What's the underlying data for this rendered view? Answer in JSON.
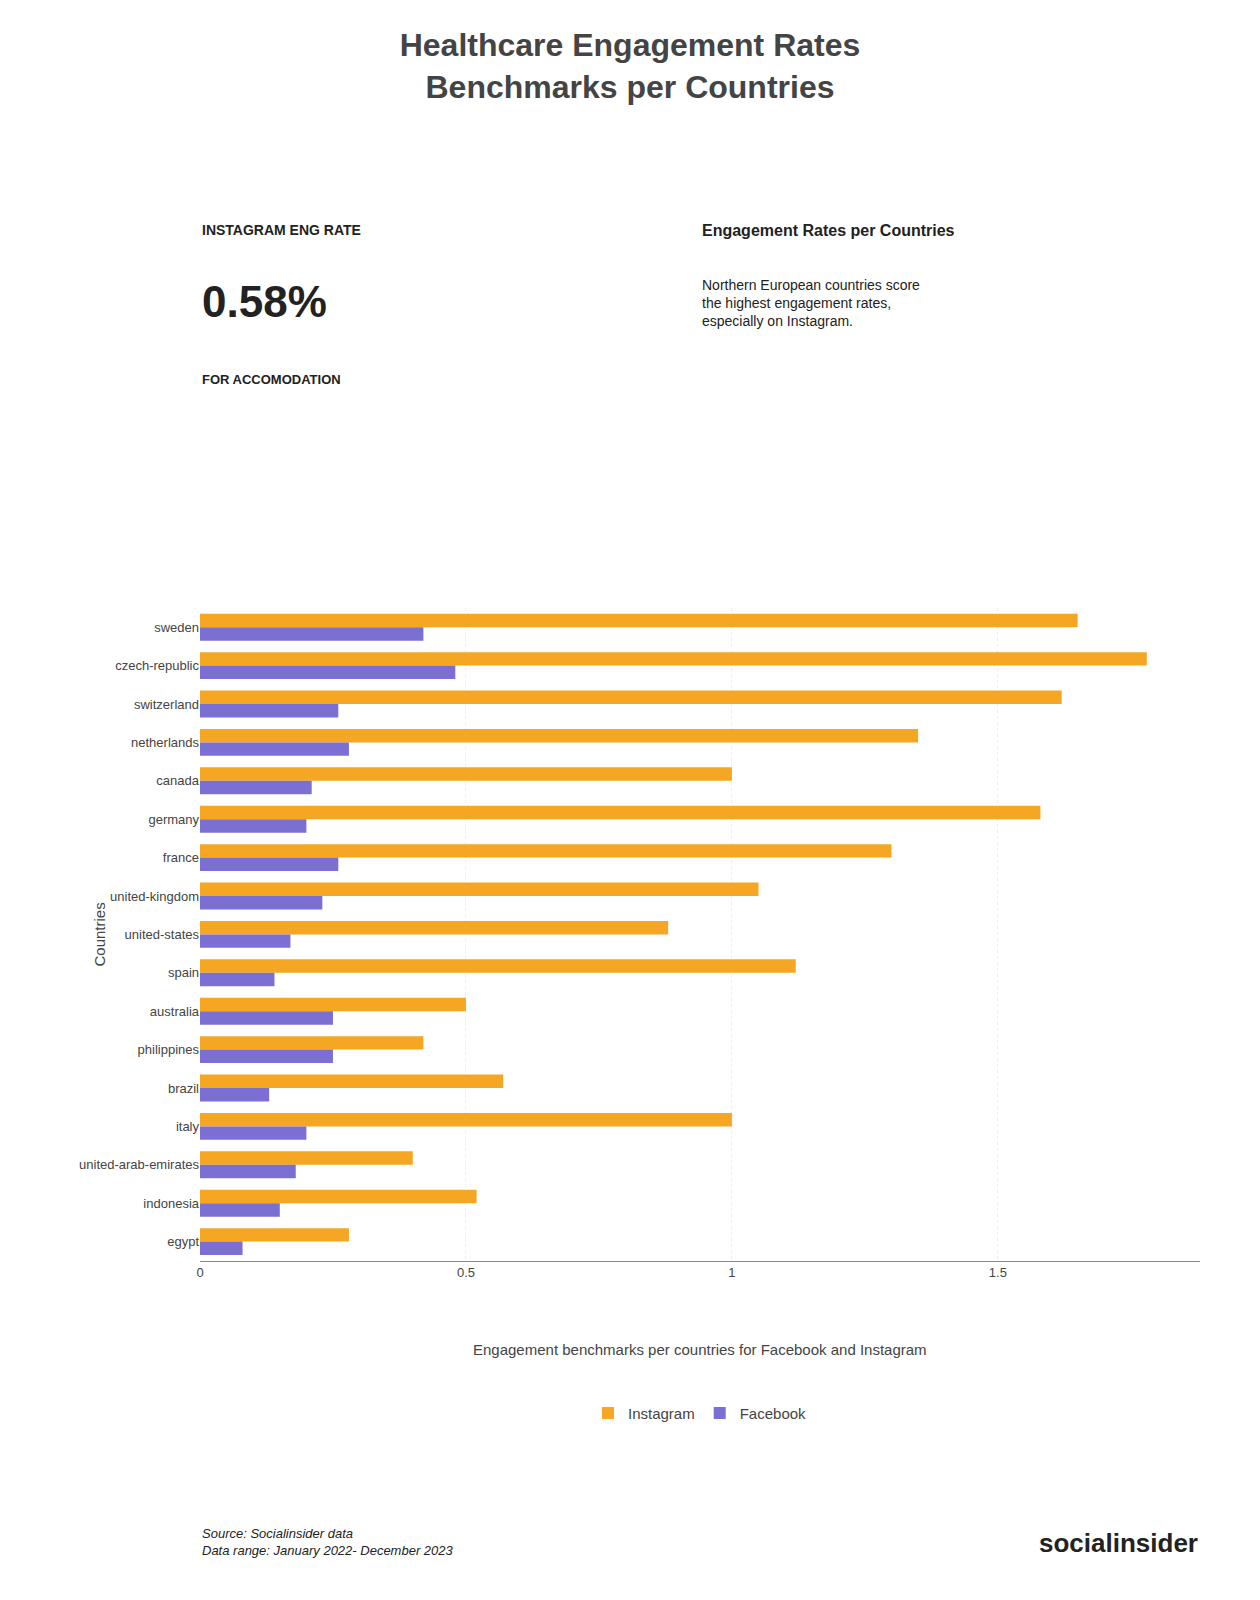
{
  "chart_data": {
    "type": "bar",
    "orientation": "horizontal",
    "title": "Healthcare Engagement Rates\nBenchmarks per Countries",
    "subtitle": "Engagement benchmarks per countries for Facebook and Instagram",
    "annotations": [
      "INSTAGRAM ENG RATE",
      "0.58%",
      "FOR ACCOMODATION",
      "Engagement Rates per Countries",
      "Northern European countries score\nthe highest engagement rates,\nespecially on Instagram.",
      "Source: Socialinsider data\nData range: January 2022- December 2023",
      "socialinsider"
    ],
    "ylabel": "Countries",
    "categories": [
      "sweden",
      "czech-republic",
      "switzerland",
      "netherlands",
      "canada",
      "germany",
      "france",
      "united-kingdom",
      "united-states",
      "spain",
      "australia",
      "philippines",
      "brazil",
      "italy",
      "united-arab-emirates",
      "indonesia",
      "egypt"
    ],
    "series": [
      {
        "name": "Instagram",
        "color": "#f5a623",
        "values": [
          1.65,
          1.78,
          1.62,
          1.35,
          1.0,
          1.58,
          1.3,
          1.05,
          0.88,
          1.12,
          0.5,
          0.42,
          0.57,
          1.0,
          0.4,
          0.52,
          0.28
        ]
      },
      {
        "name": "Facebook",
        "color": "#7b6fd4",
        "values": [
          0.42,
          0.48,
          0.26,
          0.28,
          0.21,
          0.2,
          0.26,
          0.23,
          0.17,
          0.14,
          0.25,
          0.25,
          0.13,
          0.2,
          0.18,
          0.15,
          0.08
        ]
      }
    ],
    "xlim": [
      0,
      1.88
    ],
    "xticks": [
      0,
      0.5,
      1,
      1.5
    ],
    "grid": true,
    "legend": "bottom"
  }
}
